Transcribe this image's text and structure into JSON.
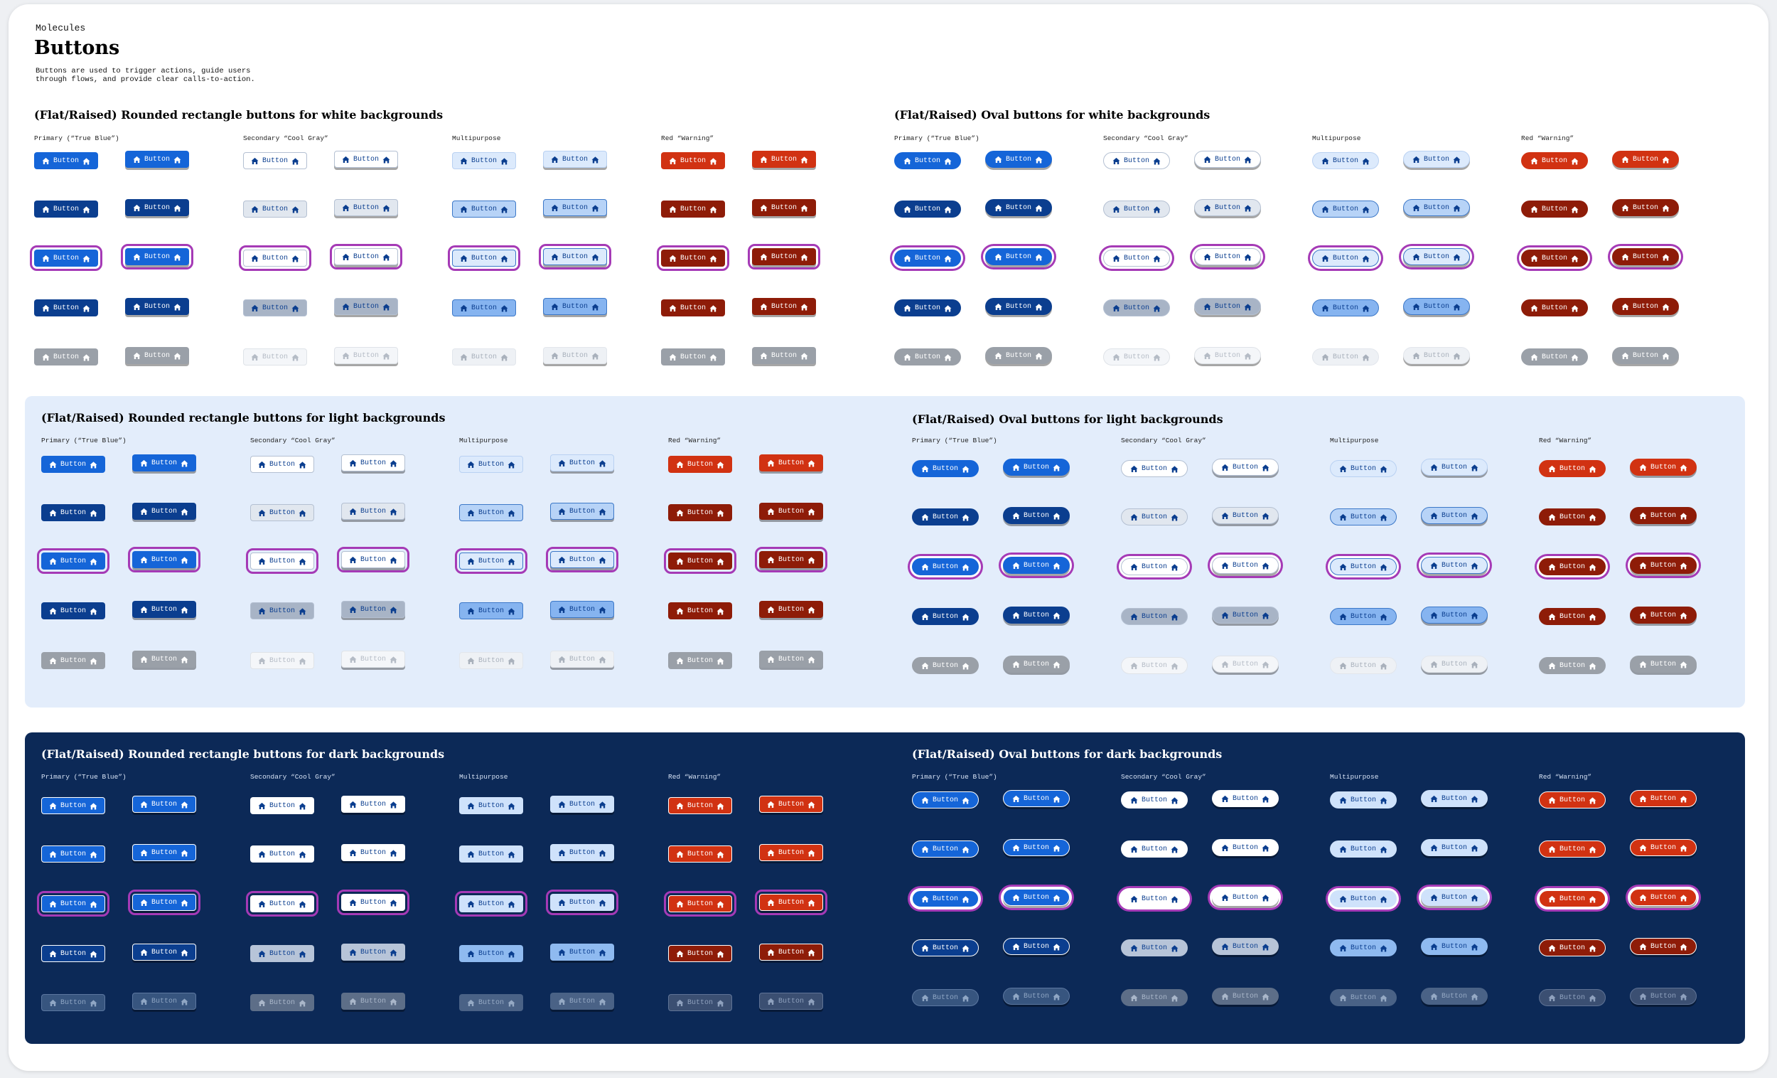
{
  "header": {
    "eyebrow": "Molecules",
    "title": "Buttons",
    "description": "Buttons are used to trigger actions, guide users through flows, and provide clear calls-to-action."
  },
  "button_label": "Button",
  "button_icon": "home-icon",
  "column_labels": [
    "Primary (“True Blue”)",
    "Secondary “Cool Gray”",
    "Multipurpose",
    "Red “Warning”"
  ],
  "sections": [
    {
      "id": "white-rect",
      "title": "(Flat/Raised) Rounded rectangle buttons for white backgrounds",
      "background": "white",
      "shape": "rect"
    },
    {
      "id": "white-oval",
      "title": "(Flat/Raised) Oval buttons for white backgrounds",
      "background": "white",
      "shape": "oval"
    },
    {
      "id": "light-rect",
      "title": "(Flat/Raised) Rounded rectangle buttons for light backgrounds",
      "background": "light",
      "shape": "rect"
    },
    {
      "id": "light-oval",
      "title": "(Flat/Raised) Oval buttons for light backgrounds",
      "background": "light",
      "shape": "oval"
    },
    {
      "id": "dark-rect",
      "title": "(Flat/Raised) Rounded rectangle buttons for dark backgrounds",
      "background": "dark",
      "shape": "rect"
    },
    {
      "id": "dark-oval",
      "title": "(Flat/Raised) Oval buttons for dark backgrounds",
      "background": "dark",
      "shape": "oval"
    }
  ],
  "states": [
    "default",
    "hover",
    "focus",
    "pressed",
    "disabled"
  ],
  "colors": {
    "primary": "#1565d8",
    "primary_dark": "#0b3e8f",
    "secondary_border": "#1565d8",
    "multipurpose_fill": "#cfe2fb",
    "warning": "#d13212",
    "warning_dark": "#8e1c08",
    "focus_ring": "#a53ab6",
    "disabled": "#9aa0a8",
    "light_panel": "#e3edfb",
    "dark_panel": "#0c2957"
  }
}
